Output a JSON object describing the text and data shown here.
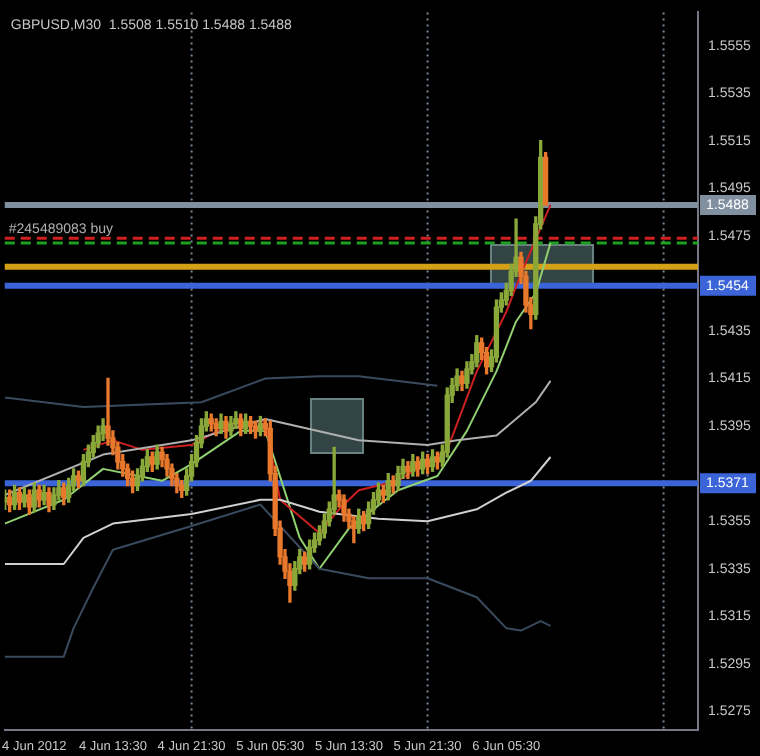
{
  "chart_data": {
    "type": "candlestick",
    "title": "GBPUSD,M30  1.5508 1.5510 1.5488 1.5488",
    "xlim": [
      "2012-06-04T02:30",
      "2012-06-07T01:00"
    ],
    "xticks": [
      {
        "value": "2012-06-04T05:30",
        "label": "4 Jun 2012"
      },
      {
        "value": "2012-06-04T13:30",
        "label": "4 Jun 13:30"
      },
      {
        "value": "2012-06-04T21:30",
        "label": "4 Jun 21:30"
      },
      {
        "value": "2012-06-05T05:30",
        "label": "5 Jun 05:30"
      },
      {
        "value": "2012-06-05T13:30",
        "label": "5 Jun 13:30"
      },
      {
        "value": "2012-06-05T21:30",
        "label": "5 Jun 21:30"
      },
      {
        "value": "2012-06-06T05:30",
        "label": "6 Jun 05:30"
      }
    ],
    "ylim": [
      1.5267,
      1.5569
    ],
    "yticks": [
      1.5555,
      1.5535,
      1.5515,
      1.5495,
      1.5475,
      1.5435,
      1.5415,
      1.5395,
      1.5355,
      1.5335,
      1.5315,
      1.5295,
      1.5275
    ],
    "grid": false,
    "legend": false,
    "series": [
      {
        "x": [
          "2012-06-04T02:30",
          "2012-06-04T03:00",
          "2012-06-04T03:30",
          "2012-06-04T04:00",
          "2012-06-04T04:30",
          "2012-06-04T05:00",
          "2012-06-04T05:30",
          "2012-06-04T06:00",
          "2012-06-04T06:30",
          "2012-06-04T07:00",
          "2012-06-04T07:30",
          "2012-06-04T08:00",
          "2012-06-04T08:30",
          "2012-06-04T09:00",
          "2012-06-04T09:30",
          "2012-06-04T10:00",
          "2012-06-04T10:30",
          "2012-06-04T11:00",
          "2012-06-04T11:30",
          "2012-06-04T12:00",
          "2012-06-04T12:30",
          "2012-06-04T13:00",
          "2012-06-04T13:30",
          "2012-06-04T14:00",
          "2012-06-04T14:30",
          "2012-06-04T15:00",
          "2012-06-04T15:30",
          "2012-06-04T16:00",
          "2012-06-04T16:30",
          "2012-06-04T17:00",
          "2012-06-04T17:30",
          "2012-06-04T18:00",
          "2012-06-04T18:30",
          "2012-06-04T19:00",
          "2012-06-04T19:30",
          "2012-06-04T20:00",
          "2012-06-04T20:30",
          "2012-06-04T21:00",
          "2012-06-04T21:30",
          "2012-06-04T22:00",
          "2012-06-04T22:30",
          "2012-06-04T23:00",
          "2012-06-04T23:30",
          "2012-06-05T00:00",
          "2012-06-05T00:30",
          "2012-06-05T01:00",
          "2012-06-05T01:30",
          "2012-06-05T02:00",
          "2012-06-05T02:30",
          "2012-06-05T03:00",
          "2012-06-05T03:30",
          "2012-06-05T04:00",
          "2012-06-05T04:30",
          "2012-06-05T05:00",
          "2012-06-05T05:30",
          "2012-06-05T06:00",
          "2012-06-05T06:30",
          "2012-06-05T07:00",
          "2012-06-05T07:30",
          "2012-06-05T08:00",
          "2012-06-05T08:30",
          "2012-06-05T09:00",
          "2012-06-05T09:30",
          "2012-06-05T10:00",
          "2012-06-05T10:30",
          "2012-06-05T11:00",
          "2012-06-05T11:30",
          "2012-06-05T12:00",
          "2012-06-05T12:30",
          "2012-06-05T13:00",
          "2012-06-05T13:30",
          "2012-06-05T14:00",
          "2012-06-05T14:30",
          "2012-06-05T15:00",
          "2012-06-05T15:30",
          "2012-06-05T16:00",
          "2012-06-05T16:30",
          "2012-06-05T17:00",
          "2012-06-05T17:30",
          "2012-06-05T18:00",
          "2012-06-05T18:30",
          "2012-06-05T19:00",
          "2012-06-05T19:30",
          "2012-06-05T20:00",
          "2012-06-05T20:30",
          "2012-06-05T21:00",
          "2012-06-05T21:30",
          "2012-06-05T22:00",
          "2012-06-05T22:30",
          "2012-06-05T23:00",
          "2012-06-05T23:30",
          "2012-06-06T00:00",
          "2012-06-06T00:30",
          "2012-06-06T01:00",
          "2012-06-06T01:30",
          "2012-06-06T02:00",
          "2012-06-06T02:30",
          "2012-06-06T03:00",
          "2012-06-06T03:30",
          "2012-06-06T04:00",
          "2012-06-06T04:30",
          "2012-06-06T05:00",
          "2012-06-06T05:30",
          "2012-06-06T06:00",
          "2012-06-06T06:30",
          "2012-06-06T07:00",
          "2012-06-06T07:30",
          "2012-06-06T08:00",
          "2012-06-06T08:30",
          "2012-06-06T09:00",
          "2012-06-06T09:30"
        ],
        "ohlc": [
          [
            1.5363,
            1.5368,
            1.536,
            1.5365
          ],
          [
            1.5365,
            1.5368,
            1.5359,
            1.5362
          ],
          [
            1.5362,
            1.537,
            1.536,
            1.5367
          ],
          [
            1.5367,
            1.5369,
            1.536,
            1.5363
          ],
          [
            1.5363,
            1.5369,
            1.5361,
            1.5366
          ],
          [
            1.5366,
            1.5368,
            1.5358,
            1.5361
          ],
          [
            1.5361,
            1.5371,
            1.5359,
            1.5368
          ],
          [
            1.5368,
            1.537,
            1.5361,
            1.5364
          ],
          [
            1.5364,
            1.537,
            1.5362,
            1.5367
          ],
          [
            1.5367,
            1.5369,
            1.5359,
            1.5362
          ],
          [
            1.5362,
            1.5369,
            1.536,
            1.5366
          ],
          [
            1.5366,
            1.5372,
            1.5364,
            1.5369
          ],
          [
            1.5369,
            1.5371,
            1.5362,
            1.5365
          ],
          [
            1.5365,
            1.5373,
            1.5363,
            1.537
          ],
          [
            1.537,
            1.5377,
            1.5368,
            1.5374
          ],
          [
            1.5374,
            1.5376,
            1.5369,
            1.5372
          ],
          [
            1.5372,
            1.5383,
            1.537,
            1.538
          ],
          [
            1.538,
            1.5387,
            1.5378,
            1.5384
          ],
          [
            1.5384,
            1.5391,
            1.5382,
            1.5388
          ],
          [
            1.5388,
            1.5395,
            1.5386,
            1.5392
          ],
          [
            1.5392,
            1.5398,
            1.5389,
            1.5395
          ],
          [
            1.5395,
            1.5415,
            1.5387,
            1.539
          ],
          [
            1.539,
            1.5393,
            1.5383,
            1.5386
          ],
          [
            1.5386,
            1.5388,
            1.5377,
            1.538
          ],
          [
            1.538,
            1.5383,
            1.5374,
            1.5377
          ],
          [
            1.5377,
            1.5379,
            1.537,
            1.5373
          ],
          [
            1.5373,
            1.5376,
            1.5367,
            1.537
          ],
          [
            1.537,
            1.5377,
            1.5368,
            1.5374
          ],
          [
            1.5374,
            1.5381,
            1.5372,
            1.5378
          ],
          [
            1.5378,
            1.5385,
            1.5376,
            1.5382
          ],
          [
            1.5382,
            1.5384,
            1.5376,
            1.5379
          ],
          [
            1.5379,
            1.5387,
            1.5377,
            1.5384
          ],
          [
            1.5384,
            1.5386,
            1.5378,
            1.5381
          ],
          [
            1.5381,
            1.5383,
            1.5374,
            1.5377
          ],
          [
            1.5377,
            1.5379,
            1.537,
            1.5373
          ],
          [
            1.5373,
            1.5375,
            1.5367,
            1.537
          ],
          [
            1.537,
            1.5372,
            1.5365,
            1.5368
          ],
          [
            1.5368,
            1.5377,
            1.5366,
            1.5374
          ],
          [
            1.5374,
            1.5383,
            1.5372,
            1.538
          ],
          [
            1.538,
            1.5391,
            1.5378,
            1.5388
          ],
          [
            1.5388,
            1.5398,
            1.5386,
            1.5395
          ],
          [
            1.5395,
            1.5401,
            1.5393,
            1.5398
          ],
          [
            1.5398,
            1.54,
            1.5393,
            1.5396
          ],
          [
            1.5396,
            1.5398,
            1.5391,
            1.5394
          ],
          [
            1.5394,
            1.54,
            1.5392,
            1.5397
          ],
          [
            1.5397,
            1.5399,
            1.539,
            1.5393
          ],
          [
            1.5393,
            1.5399,
            1.5391,
            1.5396
          ],
          [
            1.5396,
            1.5401,
            1.5394,
            1.5398
          ],
          [
            1.5398,
            1.54,
            1.5391,
            1.5394
          ],
          [
            1.5394,
            1.54,
            1.5392,
            1.5397
          ],
          [
            1.5397,
            1.5399,
            1.5392,
            1.5395
          ],
          [
            1.5395,
            1.5397,
            1.539,
            1.5393
          ],
          [
            1.5393,
            1.5399,
            1.5391,
            1.5396
          ],
          [
            1.5396,
            1.5398,
            1.5391,
            1.5394
          ],
          [
            1.5394,
            1.5397,
            1.5372,
            1.5375
          ],
          [
            1.5375,
            1.5378,
            1.5349,
            1.5352
          ],
          [
            1.5352,
            1.5355,
            1.5337,
            1.534
          ],
          [
            1.534,
            1.5343,
            1.5331,
            1.5334
          ],
          [
            1.5334,
            1.5337,
            1.5321,
            1.5328
          ],
          [
            1.5328,
            1.5338,
            1.5326,
            1.5335
          ],
          [
            1.5335,
            1.5343,
            1.5333,
            1.534
          ],
          [
            1.534,
            1.5342,
            1.5334,
            1.5337
          ],
          [
            1.5337,
            1.5347,
            1.5335,
            1.5344
          ],
          [
            1.5344,
            1.535,
            1.5342,
            1.5347
          ],
          [
            1.5347,
            1.5353,
            1.5345,
            1.535
          ],
          [
            1.535,
            1.5358,
            1.5348,
            1.5355
          ],
          [
            1.5355,
            1.5363,
            1.5353,
            1.536
          ],
          [
            1.536,
            1.5386,
            1.5358,
            1.5366
          ],
          [
            1.5366,
            1.5368,
            1.5361,
            1.5364
          ],
          [
            1.5364,
            1.5366,
            1.5355,
            1.5358
          ],
          [
            1.5358,
            1.536,
            1.5352,
            1.5355
          ],
          [
            1.5355,
            1.5357,
            1.5346,
            1.5352
          ],
          [
            1.5352,
            1.536,
            1.535,
            1.5357
          ],
          [
            1.5357,
            1.5359,
            1.5351,
            1.5354
          ],
          [
            1.5354,
            1.5363,
            1.5352,
            1.536
          ],
          [
            1.536,
            1.5367,
            1.5358,
            1.5364
          ],
          [
            1.5364,
            1.5371,
            1.5362,
            1.5368
          ],
          [
            1.5368,
            1.537,
            1.5363,
            1.5366
          ],
          [
            1.5366,
            1.5375,
            1.5364,
            1.5372
          ],
          [
            1.5372,
            1.5374,
            1.5367,
            1.537
          ],
          [
            1.537,
            1.5378,
            1.5368,
            1.5375
          ],
          [
            1.5375,
            1.5381,
            1.5373,
            1.5378
          ],
          [
            1.5378,
            1.538,
            1.5373,
            1.5376
          ],
          [
            1.5376,
            1.5383,
            1.5374,
            1.538
          ],
          [
            1.538,
            1.5382,
            1.5374,
            1.5377
          ],
          [
            1.5377,
            1.5384,
            1.5375,
            1.5381
          ],
          [
            1.5381,
            1.5383,
            1.5375,
            1.5378
          ],
          [
            1.5378,
            1.5385,
            1.5376,
            1.5382
          ],
          [
            1.5382,
            1.5384,
            1.5377,
            1.538
          ],
          [
            1.538,
            1.5387,
            1.5378,
            1.5384
          ],
          [
            1.5384,
            1.5411,
            1.5382,
            1.5408
          ],
          [
            1.5408,
            1.5415,
            1.5405,
            1.5412
          ],
          [
            1.5412,
            1.5419,
            1.541,
            1.5416
          ],
          [
            1.5416,
            1.5418,
            1.541,
            1.5413
          ],
          [
            1.5413,
            1.5422,
            1.5411,
            1.5419
          ],
          [
            1.5419,
            1.5425,
            1.5417,
            1.5422
          ],
          [
            1.5422,
            1.5433,
            1.542,
            1.543
          ],
          [
            1.543,
            1.5432,
            1.5423,
            1.5426
          ],
          [
            1.5426,
            1.5428,
            1.5417,
            1.542
          ],
          [
            1.542,
            1.5427,
            1.5418,
            1.5424
          ],
          [
            1.5424,
            1.5448,
            1.5422,
            1.5445
          ],
          [
            1.5445,
            1.5451,
            1.5443,
            1.5448
          ],
          [
            1.5448,
            1.5455,
            1.5446,
            1.5452
          ],
          [
            1.5452,
            1.5463,
            1.545,
            1.546
          ],
          [
            1.546,
            1.5482,
            1.5458,
            1.5466
          ],
          [
            1.5466,
            1.5468,
            1.5455,
            1.5458
          ],
          [
            1.5458,
            1.546,
            1.5443,
            1.5446
          ],
          [
            1.5446,
            1.5449,
            1.5436,
            1.5442
          ],
          [
            1.5442,
            1.5483,
            1.544,
            1.548
          ],
          [
            1.548,
            1.5515,
            1.5478,
            1.5508
          ],
          [
            1.5508,
            1.551,
            1.5488,
            1.5488
          ]
        ],
        "colors": [
          "#8aa83a",
          "#e8782c",
          "#8aa83a",
          "#e8782c",
          "#8aa83a",
          "#e8782c",
          "#8aa83a",
          "#e8782c",
          "#8aa83a",
          "#e8782c",
          "#8aa83a",
          "#8aa83a",
          "#e8782c",
          "#8aa83a",
          "#8aa83a",
          "#e8782c",
          "#8aa83a",
          "#8aa83a",
          "#8aa83a",
          "#8aa83a",
          "#8aa83a",
          "#e8782c",
          "#e8782c",
          "#e8782c",
          "#e8782c",
          "#e8782c",
          "#e8782c",
          "#8aa83a",
          "#8aa83a",
          "#8aa83a",
          "#e8782c",
          "#8aa83a",
          "#e8782c",
          "#e8782c",
          "#e8782c",
          "#e8782c",
          "#e8782c",
          "#8aa83a",
          "#8aa83a",
          "#8aa83a",
          "#8aa83a",
          "#8aa83a",
          "#e8782c",
          "#e8782c",
          "#8aa83a",
          "#e8782c",
          "#8aa83a",
          "#8aa83a",
          "#e8782c",
          "#8aa83a",
          "#e8782c",
          "#e8782c",
          "#8aa83a",
          "#e8782c",
          "#e8782c",
          "#e8782c",
          "#e8782c",
          "#e8782c",
          "#e8782c",
          "#8aa83a",
          "#8aa83a",
          "#e8782c",
          "#8aa83a",
          "#8aa83a",
          "#8aa83a",
          "#8aa83a",
          "#8aa83a",
          "#8aa83a",
          "#e8782c",
          "#e8782c",
          "#e8782c",
          "#e8782c",
          "#8aa83a",
          "#e8782c",
          "#8aa83a",
          "#8aa83a",
          "#8aa83a",
          "#e8782c",
          "#8aa83a",
          "#e8782c",
          "#8aa83a",
          "#8aa83a",
          "#e8782c",
          "#8aa83a",
          "#e8782c",
          "#8aa83a",
          "#e8782c",
          "#8aa83a",
          "#e8782c",
          "#8aa83a",
          "#8aa83a",
          "#8aa83a",
          "#8aa83a",
          "#e8782c",
          "#8aa83a",
          "#8aa83a",
          "#8aa83a",
          "#e8782c",
          "#e8782c",
          "#8aa83a",
          "#8aa83a",
          "#8aa83a",
          "#8aa83a",
          "#8aa83a",
          "#8aa83a",
          "#e8782c",
          "#e8782c",
          "#e8782c",
          "#8aa83a",
          "#8aa83a",
          "#e8782c"
        ]
      },
      {
        "type": "line",
        "color": "#3a4a5e",
        "x": [
          "2012-06-04T02:30",
          "2012-06-04T10:30",
          "2012-06-04T22:30",
          "2012-06-05T05:00",
          "2012-06-05T10:30",
          "2012-06-05T14:30",
          "2012-06-05T18:30",
          "2012-06-05T22:30"
        ],
        "values": [
          1.5407,
          1.5403,
          1.5405,
          1.5415,
          1.5416,
          1.5416,
          1.5414,
          1.5412
        ]
      },
      {
        "type": "line",
        "color": "#b0b0b0",
        "x": [
          "2012-06-04T02:30",
          "2012-06-04T12:30",
          "2012-06-04T21:30",
          "2012-06-05T05:00",
          "2012-06-05T14:30",
          "2012-06-05T21:30",
          "2012-06-06T00:30",
          "2012-06-06T04:30",
          "2012-06-06T08:30",
          "2012-06-06T10:00"
        ],
        "values": [
          1.5366,
          1.5383,
          1.5389,
          1.5398,
          1.5389,
          1.5387,
          1.5389,
          1.5391,
          1.5405,
          1.5414
        ]
      },
      {
        "type": "line",
        "color": "#d0d0d0",
        "x": [
          "2012-06-04T02:30",
          "2012-06-04T08:30",
          "2012-06-04T10:30",
          "2012-06-04T13:30",
          "2012-06-04T21:30",
          "2012-06-05T04:30",
          "2012-06-05T06:30",
          "2012-06-05T10:30",
          "2012-06-05T16:30",
          "2012-06-05T21:30",
          "2012-06-06T02:30",
          "2012-06-06T05:30",
          "2012-06-06T08:00",
          "2012-06-06T10:00"
        ],
        "values": [
          1.5337,
          1.5337,
          1.5348,
          1.5354,
          1.5358,
          1.5364,
          1.5364,
          1.5359,
          1.5356,
          1.5355,
          1.536,
          1.5367,
          1.5372,
          1.5382
        ]
      },
      {
        "type": "line",
        "color": "#3a4a5e",
        "x": [
          "2012-06-04T02:30",
          "2012-06-04T08:30",
          "2012-06-04T09:30",
          "2012-06-04T11:30",
          "2012-06-04T13:30",
          "2012-06-04T21:30",
          "2012-06-05T04:30",
          "2012-06-05T10:30",
          "2012-06-05T15:30",
          "2012-06-05T21:30",
          "2012-06-06T02:30",
          "2012-06-06T05:30",
          "2012-06-06T07:00",
          "2012-06-06T09:00",
          "2012-06-06T10:00"
        ],
        "values": [
          1.5298,
          1.5298,
          1.531,
          1.5327,
          1.5343,
          1.5353,
          1.5362,
          1.5335,
          1.5331,
          1.5331,
          1.5323,
          1.531,
          1.5309,
          1.5313,
          1.5311
        ]
      },
      {
        "type": "line",
        "color": "#cc2020",
        "x": [
          "2012-06-04T10:30",
          "2012-06-04T13:30",
          "2012-06-04T16:30",
          "2012-06-04T21:30",
          "2012-06-05T01:30",
          "2012-06-05T05:00",
          "2012-06-05T06:30",
          "2012-06-05T10:30",
          "2012-06-05T12:30",
          "2012-06-05T14:30",
          "2012-06-05T18:30",
          "2012-06-05T23:30",
          "2012-06-06T02:30",
          "2012-06-06T05:30",
          "2012-06-06T07:00",
          "2012-06-06T10:00"
        ],
        "values": [
          1.5385,
          1.5389,
          1.5385,
          1.5387,
          1.5396,
          1.5397,
          1.5364,
          1.535,
          1.536,
          1.5368,
          1.5372,
          1.5385,
          1.5418,
          1.5443,
          1.5459,
          1.5488
        ]
      },
      {
        "type": "line",
        "color": "#90d070",
        "x": [
          "2012-06-04T02:30",
          "2012-06-04T08:30",
          "2012-06-04T12:30",
          "2012-06-04T18:30",
          "2012-06-04T21:30",
          "2012-06-05T02:30",
          "2012-06-05T05:00",
          "2012-06-05T08:30",
          "2012-06-05T10:30",
          "2012-06-05T13:30",
          "2012-06-05T18:30",
          "2012-06-05T22:30",
          "2012-06-06T01:30",
          "2012-06-06T04:30",
          "2012-06-06T06:30",
          "2012-06-06T08:30",
          "2012-06-06T10:00"
        ],
        "values": [
          1.5354,
          1.5364,
          1.5377,
          1.5372,
          1.5379,
          1.5393,
          1.5393,
          1.5348,
          1.5335,
          1.5352,
          1.5368,
          1.5374,
          1.5393,
          1.5418,
          1.5439,
          1.5451,
          1.5472
        ]
      }
    ],
    "ref_lines": [
      {
        "axis": "x",
        "value": "2012-06-04T21:30",
        "color": "#7a8898",
        "line_style": "dotted"
      },
      {
        "axis": "x",
        "value": "2012-06-05T21:30",
        "color": "#7a8898",
        "line_style": "dotted"
      },
      {
        "axis": "x",
        "value": "2012-06-06T21:30",
        "color": "#7a8898",
        "line_style": "dotted"
      },
      {
        "axis": "y",
        "value": 1.5488,
        "color": "#8090a0",
        "line_style": "solid",
        "label": "1.5488"
      },
      {
        "axis": "y",
        "value": 1.5474,
        "color": "#d02020",
        "line_style": "dashed"
      },
      {
        "axis": "y",
        "value": 1.5472,
        "color": "#20a020",
        "line_style": "dashed"
      },
      {
        "axis": "y",
        "value": 1.5462,
        "color": "#d4a017",
        "line_style": "solid"
      },
      {
        "axis": "y",
        "value": 1.5454,
        "color": "#3a64d8",
        "line_style": "solid",
        "label": "1.5454"
      },
      {
        "axis": "y",
        "value": 1.5371,
        "color": "#3a64d8",
        "line_style": "solid",
        "label": "1.5371"
      }
    ],
    "annotations": [
      {
        "text": "#245489083 buy",
        "x": "2012-06-04T02:30",
        "y": 1.5474
      }
    ]
  }
}
